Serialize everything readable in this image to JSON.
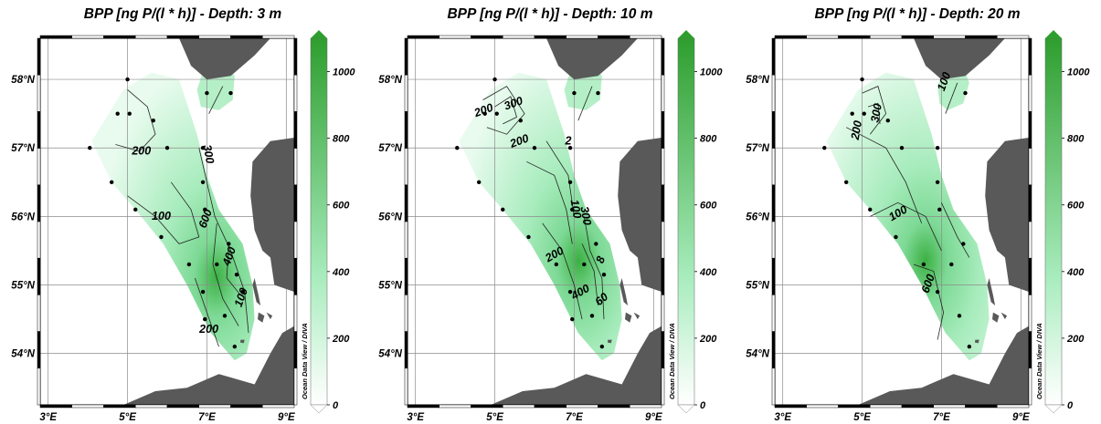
{
  "panels": [
    {
      "title": "BPP [ng P/(l * h)] - Depth: 3 m",
      "contour_labels": [
        "200",
        "300",
        "100",
        "600",
        "400",
        "100",
        "200"
      ],
      "hotspot": [
        7.7,
        54.8
      ],
      "stations": [
        [
          5.0,
          58.0
        ],
        [
          4.75,
          57.5
        ],
        [
          5.05,
          57.5
        ],
        [
          5.65,
          57.4
        ],
        [
          4.05,
          57.0
        ],
        [
          6.0,
          57.0
        ],
        [
          6.9,
          57.0
        ],
        [
          4.6,
          56.5
        ],
        [
          6.9,
          56.5
        ],
        [
          5.2,
          56.1
        ],
        [
          6.95,
          56.1
        ],
        [
          5.85,
          55.7
        ],
        [
          7.55,
          55.6
        ],
        [
          6.55,
          55.3
        ],
        [
          7.25,
          55.3
        ],
        [
          7.75,
          55.15
        ],
        [
          6.9,
          54.9
        ],
        [
          7.9,
          54.9
        ],
        [
          7.45,
          54.55
        ],
        [
          6.95,
          54.5
        ],
        [
          7.7,
          54.1
        ],
        [
          7.0,
          57.8
        ],
        [
          7.6,
          57.8
        ]
      ]
    },
    {
      "title": "BPP [ng P/(l * h)] - Depth: 10 m",
      "contour_labels": [
        "200",
        "300",
        "200",
        "2",
        "100",
        "300",
        "200",
        "8",
        "400",
        "60"
      ],
      "hotspot": [
        7.5,
        55.1
      ],
      "stations": [
        [
          5.0,
          58.0
        ],
        [
          4.75,
          57.5
        ],
        [
          5.05,
          57.5
        ],
        [
          5.65,
          57.4
        ],
        [
          4.05,
          57.0
        ],
        [
          6.0,
          57.0
        ],
        [
          6.9,
          57.0
        ],
        [
          4.6,
          56.5
        ],
        [
          6.9,
          56.5
        ],
        [
          5.2,
          56.1
        ],
        [
          6.95,
          56.1
        ],
        [
          5.85,
          55.7
        ],
        [
          7.55,
          55.6
        ],
        [
          6.55,
          55.3
        ],
        [
          7.25,
          55.3
        ],
        [
          7.75,
          55.15
        ],
        [
          6.9,
          54.9
        ],
        [
          7.45,
          54.55
        ],
        [
          6.95,
          54.5
        ],
        [
          7.7,
          54.1
        ],
        [
          7.0,
          57.8
        ],
        [
          7.6,
          57.8
        ]
      ]
    },
    {
      "title": "BPP [ng P/(l * h)] - Depth: 20 m",
      "contour_labels": [
        "100",
        "300",
        "200",
        "100",
        "600"
      ],
      "hotspot": [
        6.7,
        55.1
      ],
      "stations": [
        [
          5.0,
          58.0
        ],
        [
          4.75,
          57.5
        ],
        [
          5.05,
          57.5
        ],
        [
          5.65,
          57.4
        ],
        [
          4.05,
          57.0
        ],
        [
          6.0,
          57.0
        ],
        [
          6.9,
          57.0
        ],
        [
          4.6,
          56.5
        ],
        [
          6.9,
          56.5
        ],
        [
          5.2,
          56.1
        ],
        [
          6.95,
          56.1
        ],
        [
          5.85,
          55.7
        ],
        [
          7.55,
          55.6
        ],
        [
          6.55,
          55.3
        ],
        [
          7.25,
          55.3
        ],
        [
          6.9,
          54.9
        ],
        [
          7.45,
          54.55
        ],
        [
          7.7,
          54.1
        ],
        [
          7.6,
          57.8
        ]
      ]
    }
  ],
  "axes": {
    "x_ticks": [
      "3°E",
      "5°E",
      "7°E",
      "9°E"
    ],
    "x_values": [
      3,
      5,
      7,
      9
    ],
    "y_ticks": [
      "54°N",
      "55°N",
      "56°N",
      "57°N",
      "58°N"
    ],
    "y_values": [
      54,
      55,
      56,
      57,
      58
    ],
    "lon_range": [
      2.8,
      9.2
    ],
    "lat_range": [
      53.25,
      58.6
    ]
  },
  "colorbar": {
    "ticks": [
      "0",
      "200",
      "400",
      "600",
      "800",
      "1000"
    ],
    "values": [
      0,
      200,
      400,
      600,
      800,
      1000
    ],
    "range": [
      0,
      1100
    ],
    "low_color": "#ffffff",
    "high_color": "#2e9e2e",
    "credit": "Ocean Data View / DIVA"
  },
  "colors": {
    "land": "#595959",
    "water_low": "#e8fbee",
    "water_mid": "#a8ecbd",
    "water_high": "#3cb043"
  }
}
